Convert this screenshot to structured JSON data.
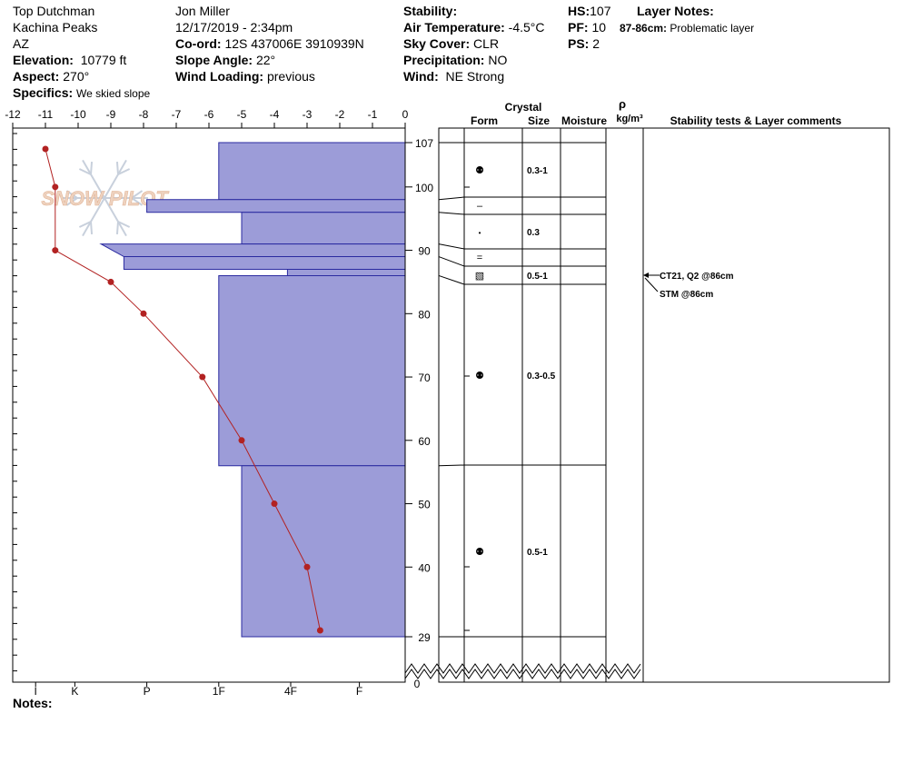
{
  "header": {
    "location": "Top Dutchman",
    "region": "Kachina Peaks",
    "state": "AZ",
    "elevation_label": "Elevation:",
    "elevation_value": "10779 ft",
    "aspect_label": "Aspect:",
    "aspect_value": "270°",
    "specifics_label": "Specifics:",
    "specifics_value": "We skied slope",
    "observer": "Jon Miller",
    "datetime": "12/17/2019 - 2:34pm",
    "coord_label": "Co-ord:",
    "coord_value": "12S 437006E 3910939N",
    "slope_label": "Slope Angle:",
    "slope_value": "22°",
    "wind_loading_label": "Wind Loading:",
    "wind_loading_value": "previous",
    "stability_label": "Stability:",
    "stability_value": "",
    "air_temp_label": "Air Temperature:",
    "air_temp_value": "-4.5°C",
    "sky_label": "Sky Cover:",
    "sky_value": "CLR",
    "precip_label": "Precipitation:",
    "precip_value": "NO",
    "wind_label": "Wind:",
    "wind_value": "NE Strong",
    "hs_label": "HS:",
    "hs_value": "107",
    "pf_label": "PF:",
    "pf_value": "10",
    "ps_label": "PS:",
    "ps_value": "2",
    "layer_notes_label": "Layer Notes:",
    "layer_note_range": "87-86cm:",
    "layer_note_text": "Problematic layer"
  },
  "notes_label": "Notes:",
  "watermark": "SNOW PILOT",
  "colors": {
    "hardness_fill": "#9c9cd8",
    "hardness_stroke": "#2a2aa0",
    "temp_line": "#b22222"
  },
  "table": {
    "crystal_label": "Crystal",
    "form_label": "Form",
    "size_label": "Size",
    "moisture_label": "Moisture",
    "density_symbol": "ρ",
    "density_unit": "kg/m³",
    "stability_label": "Stability tests & Layer comments"
  },
  "chart_data": {
    "type": "snow-profile",
    "temperature_axis": {
      "min": -12,
      "max": 0,
      "ticks": [
        -12,
        -11,
        -10,
        -9,
        -8,
        -7,
        -6,
        -5,
        -4,
        -3,
        -2,
        -1,
        0
      ]
    },
    "depth_axis": {
      "bottom": 29,
      "top": 107,
      "ticks": [
        107,
        100,
        90,
        80,
        70,
        60,
        50,
        40,
        29
      ],
      "ground_label": "0"
    },
    "hardness_scale": [
      "I",
      "K",
      "P",
      "1F",
      "4F",
      "F"
    ],
    "hardness_positions_temp": [
      -11.3,
      -10.1,
      -7.9,
      -5.7,
      -3.5,
      -1.4
    ],
    "layers": [
      {
        "top": 107,
        "bottom": 98,
        "hardness_temp": -5.7,
        "form": "rounds",
        "size": "0.3-1"
      },
      {
        "top": 98,
        "bottom": 96,
        "hardness_temp": -7.9,
        "form": "crust",
        "size": ""
      },
      {
        "top": 96,
        "bottom": 91,
        "hardness_temp": -5.0,
        "form": "precip",
        "size": "0.3"
      },
      {
        "top": 91,
        "bottom": 89,
        "hardness_temp": -9.3,
        "form": "ice",
        "size": ""
      },
      {
        "top": 89,
        "bottom": 87,
        "hardness_temp": -8.6,
        "form": "sliver",
        "size": ""
      },
      {
        "top": 87,
        "bottom": 86,
        "hardness_temp": -3.6,
        "form": "facets",
        "size": "0.5-1"
      },
      {
        "top": 86,
        "bottom": 56,
        "hardness_temp": -5.7,
        "form": "rounds",
        "size": "0.3-0.5"
      },
      {
        "top": 56,
        "bottom": 29,
        "hardness_temp": -5.0,
        "form": "rounds",
        "size": "0.5-1"
      }
    ],
    "temperature_profile": {
      "depth": [
        106,
        100,
        90,
        85,
        80,
        70,
        60,
        50,
        40,
        30
      ],
      "temp": [
        -11.0,
        -10.7,
        -10.7,
        -9.0,
        -8.0,
        -6.2,
        -5.0,
        -4.0,
        -3.0,
        -2.6
      ]
    },
    "stability_tests": [
      "CT21, Q2 @86cm",
      "STM @86cm"
    ]
  }
}
